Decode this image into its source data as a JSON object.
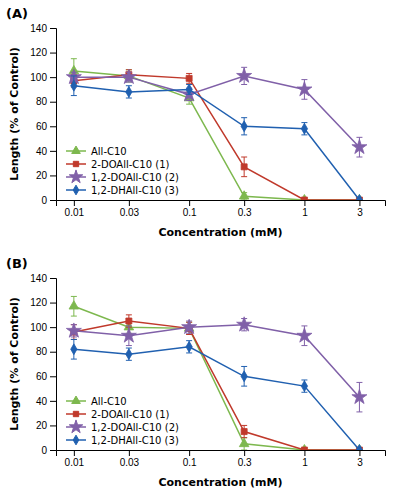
{
  "chart_data": [
    {
      "type": "line",
      "title": "(A)",
      "xlabel": "Concentration (mM)",
      "ylabel": "Length (% of Control)",
      "x": [
        0.01,
        0.03,
        0.1,
        0.3,
        1,
        3
      ],
      "xlim": [
        0.007,
        5
      ],
      "xticks": [
        0.01,
        0.03,
        0.1,
        0.3,
        1,
        3
      ],
      "log": "x",
      "ylim": [
        0,
        140
      ],
      "yticks": [
        0,
        20,
        40,
        60,
        80,
        100,
        120,
        140
      ],
      "grid": false,
      "legend": "lower left",
      "series": [
        {
          "name": "All-C10",
          "color": "#7db84e",
          "marker": "triangle",
          "values": [
            105,
            101,
            83,
            3,
            0,
            0
          ],
          "yerr": [
            10,
            5,
            5,
            3,
            0,
            0
          ]
        },
        {
          "name": "2-DOAll-C10 (1)",
          "color": "#c0392b",
          "marker": "square",
          "values": [
            97,
            102,
            99,
            27,
            0,
            0
          ],
          "yerr": [
            5,
            4,
            4,
            8,
            0,
            0
          ]
        },
        {
          "name": "1,2-DOAll-C10 (2)",
          "color": "#8060a8",
          "marker": "star",
          "values": [
            100,
            100,
            86,
            101,
            90,
            43
          ],
          "yerr": [
            4,
            4,
            5,
            7,
            8,
            8
          ]
        },
        {
          "name": "1,2-DHAll-C10 (3)",
          "color": "#2060b0",
          "marker": "diamond",
          "values": [
            93,
            88,
            90,
            60,
            58,
            0
          ],
          "yerr": [
            8,
            5,
            4,
            7,
            5,
            0
          ]
        }
      ]
    },
    {
      "type": "line",
      "title": "(B)",
      "xlabel": "Concentration (mM)",
      "ylabel": "Length (% of Control)",
      "x": [
        0.01,
        0.03,
        0.1,
        0.3,
        1,
        3
      ],
      "xlim": [
        0.007,
        5
      ],
      "xticks": [
        0.01,
        0.03,
        0.1,
        0.3,
        1,
        3
      ],
      "log": "x",
      "ylim": [
        0,
        140
      ],
      "yticks": [
        0,
        20,
        40,
        60,
        80,
        100,
        120,
        140
      ],
      "grid": false,
      "legend": "lower left",
      "series": [
        {
          "name": "All-C10",
          "color": "#7db84e",
          "marker": "triangle",
          "values": [
            117,
            100,
            99,
            5,
            0,
            0
          ],
          "yerr": [
            8,
            5,
            5,
            5,
            0,
            0
          ]
        },
        {
          "name": "2-DOAll-C10 (1)",
          "color": "#c0392b",
          "marker": "square",
          "values": [
            96,
            105,
            99,
            15,
            0,
            0
          ],
          "yerr": [
            6,
            5,
            5,
            5,
            0,
            0
          ]
        },
        {
          "name": "1,2-DOAll-C10 (2)",
          "color": "#8060a8",
          "marker": "star",
          "values": [
            97,
            93,
            100,
            102,
            93,
            43
          ],
          "yerr": [
            5,
            8,
            5,
            5,
            8,
            12
          ]
        },
        {
          "name": "1,2-DHAll-C10 (3)",
          "color": "#2060b0",
          "marker": "diamond",
          "values": [
            82,
            78,
            84,
            60,
            52,
            0
          ],
          "yerr": [
            8,
            5,
            5,
            8,
            5,
            0
          ]
        }
      ]
    }
  ]
}
